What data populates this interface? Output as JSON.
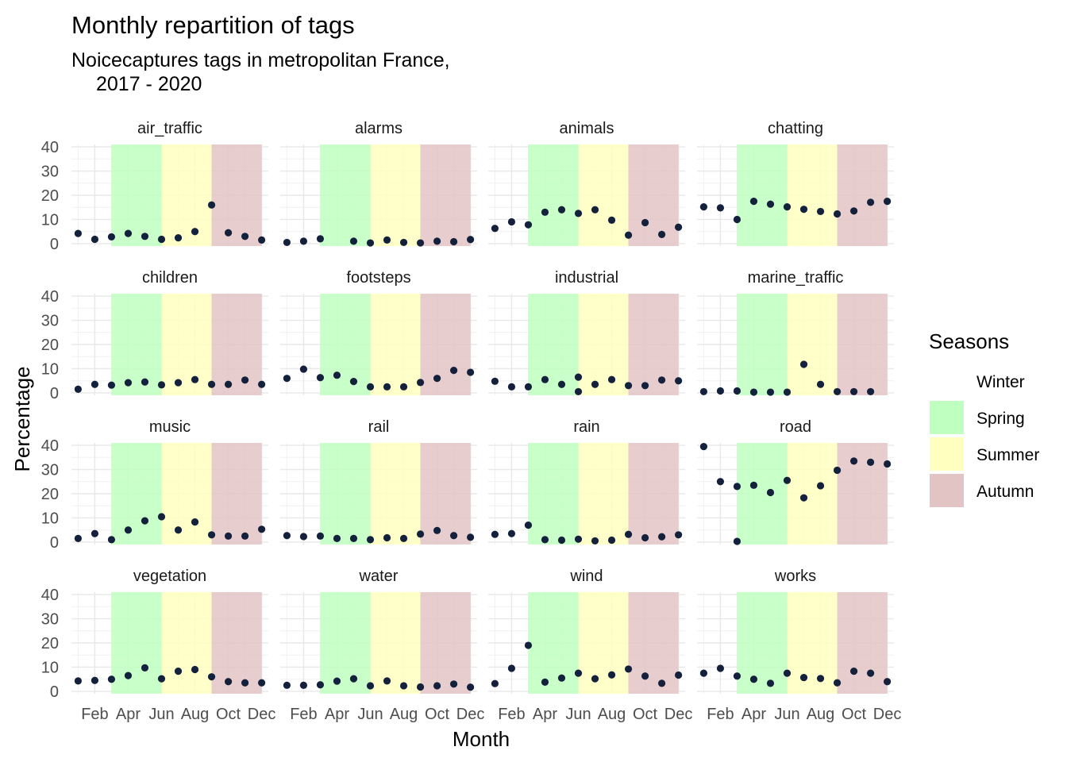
{
  "chart_data": {
    "type": "scatter",
    "title": "Monthly repartition of tags",
    "subtitle_lines": [
      "Noicecaptures tags in metropolitan France,",
      "2017 - 2020"
    ],
    "xlabel": "Month",
    "ylabel": "Percentage",
    "x_tick_labels": [
      "Feb",
      "Apr",
      "Jun",
      "Aug",
      "Oct",
      "Dec"
    ],
    "x_tick_months": [
      2,
      4,
      6,
      8,
      10,
      12
    ],
    "y_ticks": [
      0,
      10,
      20,
      30,
      40
    ],
    "xlim": [
      0.6,
      12.4
    ],
    "ylim": [
      -1,
      41
    ],
    "grid": true,
    "point_color": "#14213d",
    "legend": {
      "title": "Seasons",
      "placement": "right",
      "items": [
        {
          "label": "Winter",
          "color": "#ffffff",
          "from": 0,
          "to": 0
        },
        {
          "label": "Spring",
          "color": "#bfffbf",
          "from": 3,
          "to": 6
        },
        {
          "label": "Summer",
          "color": "#ffffbf",
          "from": 6,
          "to": 9
        },
        {
          "label": "Autumn",
          "color": "#e3c4c4",
          "from": 9,
          "to": 12
        }
      ]
    },
    "panels": [
      {
        "name": "air_traffic",
        "values": [
          [
            1,
            4.2
          ],
          [
            2,
            1.8
          ],
          [
            3,
            2.8
          ],
          [
            4,
            4.2
          ],
          [
            5,
            3
          ],
          [
            6,
            1.8
          ],
          [
            7,
            2.4
          ],
          [
            8,
            5
          ],
          [
            9,
            16
          ],
          [
            10,
            4.5
          ],
          [
            11,
            3
          ],
          [
            12,
            1.5
          ]
        ]
      },
      {
        "name": "alarms",
        "values": [
          [
            1,
            0.5
          ],
          [
            2,
            1
          ],
          [
            3,
            2
          ],
          [
            5,
            1
          ],
          [
            6,
            0.3
          ],
          [
            7,
            1.5
          ],
          [
            8,
            0.5
          ],
          [
            9,
            0.3
          ],
          [
            10,
            1
          ],
          [
            11,
            0.8
          ],
          [
            12,
            1.7
          ]
        ]
      },
      {
        "name": "animals",
        "values": [
          [
            1,
            6.3
          ],
          [
            2,
            9
          ],
          [
            3,
            7.8
          ],
          [
            4,
            13
          ],
          [
            5,
            14
          ],
          [
            6,
            12.5
          ],
          [
            7,
            14
          ],
          [
            8,
            9.7
          ],
          [
            9,
            3.5
          ],
          [
            10,
            8.7
          ],
          [
            11,
            3.8
          ],
          [
            12,
            6.8
          ]
        ]
      },
      {
        "name": "chatting",
        "values": [
          [
            1,
            15.2
          ],
          [
            2,
            14.8
          ],
          [
            3,
            10
          ],
          [
            4,
            17.5
          ],
          [
            5,
            16.3
          ],
          [
            6,
            15.2
          ],
          [
            7,
            14.2
          ],
          [
            8,
            13.3
          ],
          [
            9,
            12.3
          ],
          [
            10,
            13.5
          ],
          [
            11,
            17.1
          ],
          [
            12,
            17.5
          ]
        ]
      },
      {
        "name": "children",
        "values": [
          [
            1,
            1.5
          ],
          [
            2,
            3.5
          ],
          [
            3,
            3.2
          ],
          [
            4,
            4.2
          ],
          [
            5,
            4.5
          ],
          [
            6,
            3.3
          ],
          [
            7,
            4.2
          ],
          [
            8,
            5.5
          ],
          [
            9,
            3.5
          ],
          [
            10,
            3.5
          ],
          [
            11,
            5.3
          ],
          [
            12,
            3.5
          ]
        ]
      },
      {
        "name": "footsteps",
        "values": [
          [
            1,
            6
          ],
          [
            2,
            9.8
          ],
          [
            3,
            6.3
          ],
          [
            4,
            7.3
          ],
          [
            5,
            4.7
          ],
          [
            6,
            2.5
          ],
          [
            7,
            2.5
          ],
          [
            8,
            2.5
          ],
          [
            9,
            4.3
          ],
          [
            10,
            6
          ],
          [
            11,
            9.3
          ],
          [
            12,
            8.5
          ]
        ]
      },
      {
        "name": "industrial",
        "values": [
          [
            1,
            4.8
          ],
          [
            2,
            2.5
          ],
          [
            3,
            2.5
          ],
          [
            4,
            5.5
          ],
          [
            5,
            3.5
          ],
          [
            6,
            6.5
          ],
          [
            6,
            0.5
          ],
          [
            7,
            3.5
          ],
          [
            8,
            5.5
          ],
          [
            9,
            3
          ],
          [
            10,
            3
          ],
          [
            11,
            5.3
          ],
          [
            12,
            5
          ]
        ]
      },
      {
        "name": "marine_traffic",
        "values": [
          [
            1,
            0.5
          ],
          [
            2,
            0.8
          ],
          [
            3,
            0.8
          ],
          [
            4,
            0.3
          ],
          [
            5,
            0.3
          ],
          [
            6,
            0.3
          ],
          [
            7,
            11.8
          ],
          [
            8,
            3.5
          ],
          [
            9,
            0.5
          ],
          [
            10,
            0.5
          ],
          [
            11,
            0.5
          ]
        ]
      },
      {
        "name": "music",
        "values": [
          [
            1,
            1.5
          ],
          [
            2,
            3.5
          ],
          [
            3,
            1
          ],
          [
            4,
            5
          ],
          [
            5,
            8.8
          ],
          [
            6,
            10.5
          ],
          [
            7,
            5
          ],
          [
            8,
            8.3
          ],
          [
            9,
            3
          ],
          [
            10,
            2.5
          ],
          [
            11,
            2.5
          ],
          [
            12,
            5.3
          ]
        ]
      },
      {
        "name": "rail",
        "values": [
          [
            1,
            2.7
          ],
          [
            2,
            2.3
          ],
          [
            3,
            2.5
          ],
          [
            4,
            1.5
          ],
          [
            5,
            1.5
          ],
          [
            6,
            1
          ],
          [
            7,
            1.8
          ],
          [
            8,
            1.5
          ],
          [
            9,
            3.3
          ],
          [
            10,
            4.8
          ],
          [
            11,
            2.7
          ],
          [
            12,
            2
          ]
        ]
      },
      {
        "name": "rain",
        "values": [
          [
            1,
            3.2
          ],
          [
            2,
            3.5
          ],
          [
            3,
            7
          ],
          [
            4,
            1
          ],
          [
            5,
            0.8
          ],
          [
            6,
            1.2
          ],
          [
            7,
            0.5
          ],
          [
            8,
            0.8
          ],
          [
            9,
            3.2
          ],
          [
            10,
            1.8
          ],
          [
            11,
            2.2
          ],
          [
            12,
            3
          ]
        ]
      },
      {
        "name": "road",
        "values": [
          [
            1,
            39.5
          ],
          [
            2,
            25
          ],
          [
            3,
            23
          ],
          [
            3,
            0.3
          ],
          [
            4,
            23.5
          ],
          [
            5,
            20.5
          ],
          [
            6,
            25.5
          ],
          [
            7,
            18.3
          ],
          [
            8,
            23.3
          ],
          [
            9,
            29.7
          ],
          [
            10,
            33.5
          ],
          [
            11,
            33
          ],
          [
            12,
            32.3
          ]
        ]
      },
      {
        "name": "vegetation",
        "values": [
          [
            1,
            4.3
          ],
          [
            2,
            4.5
          ],
          [
            3,
            5
          ],
          [
            4,
            6.5
          ],
          [
            5,
            9.7
          ],
          [
            6,
            5.2
          ],
          [
            7,
            8.3
          ],
          [
            8,
            9
          ],
          [
            9,
            6
          ],
          [
            10,
            4
          ],
          [
            11,
            3.5
          ],
          [
            12,
            3.5
          ]
        ]
      },
      {
        "name": "water",
        "values": [
          [
            1,
            2.5
          ],
          [
            2,
            2.5
          ],
          [
            3,
            2.7
          ],
          [
            4,
            4.2
          ],
          [
            5,
            5.2
          ],
          [
            6,
            2.3
          ],
          [
            7,
            4.3
          ],
          [
            8,
            2.3
          ],
          [
            9,
            1.8
          ],
          [
            10,
            2.3
          ],
          [
            11,
            3
          ],
          [
            12,
            1.7
          ]
        ]
      },
      {
        "name": "wind",
        "values": [
          [
            1,
            3.2
          ],
          [
            2,
            9.5
          ],
          [
            3,
            19
          ],
          [
            4,
            3.8
          ],
          [
            5,
            5.5
          ],
          [
            6,
            7.5
          ],
          [
            7,
            5.2
          ],
          [
            8,
            6.8
          ],
          [
            9,
            9.2
          ],
          [
            10,
            6.3
          ],
          [
            11,
            3.3
          ],
          [
            12,
            6.7
          ]
        ]
      },
      {
        "name": "works",
        "values": [
          [
            1,
            7.5
          ],
          [
            2,
            9.5
          ],
          [
            3,
            6.3
          ],
          [
            4,
            5
          ],
          [
            5,
            3.3
          ],
          [
            6,
            7.5
          ],
          [
            7,
            5.7
          ],
          [
            8,
            5.3
          ],
          [
            9,
            3.5
          ],
          [
            10,
            8.3
          ],
          [
            11,
            7.5
          ],
          [
            12,
            4
          ]
        ]
      }
    ]
  }
}
